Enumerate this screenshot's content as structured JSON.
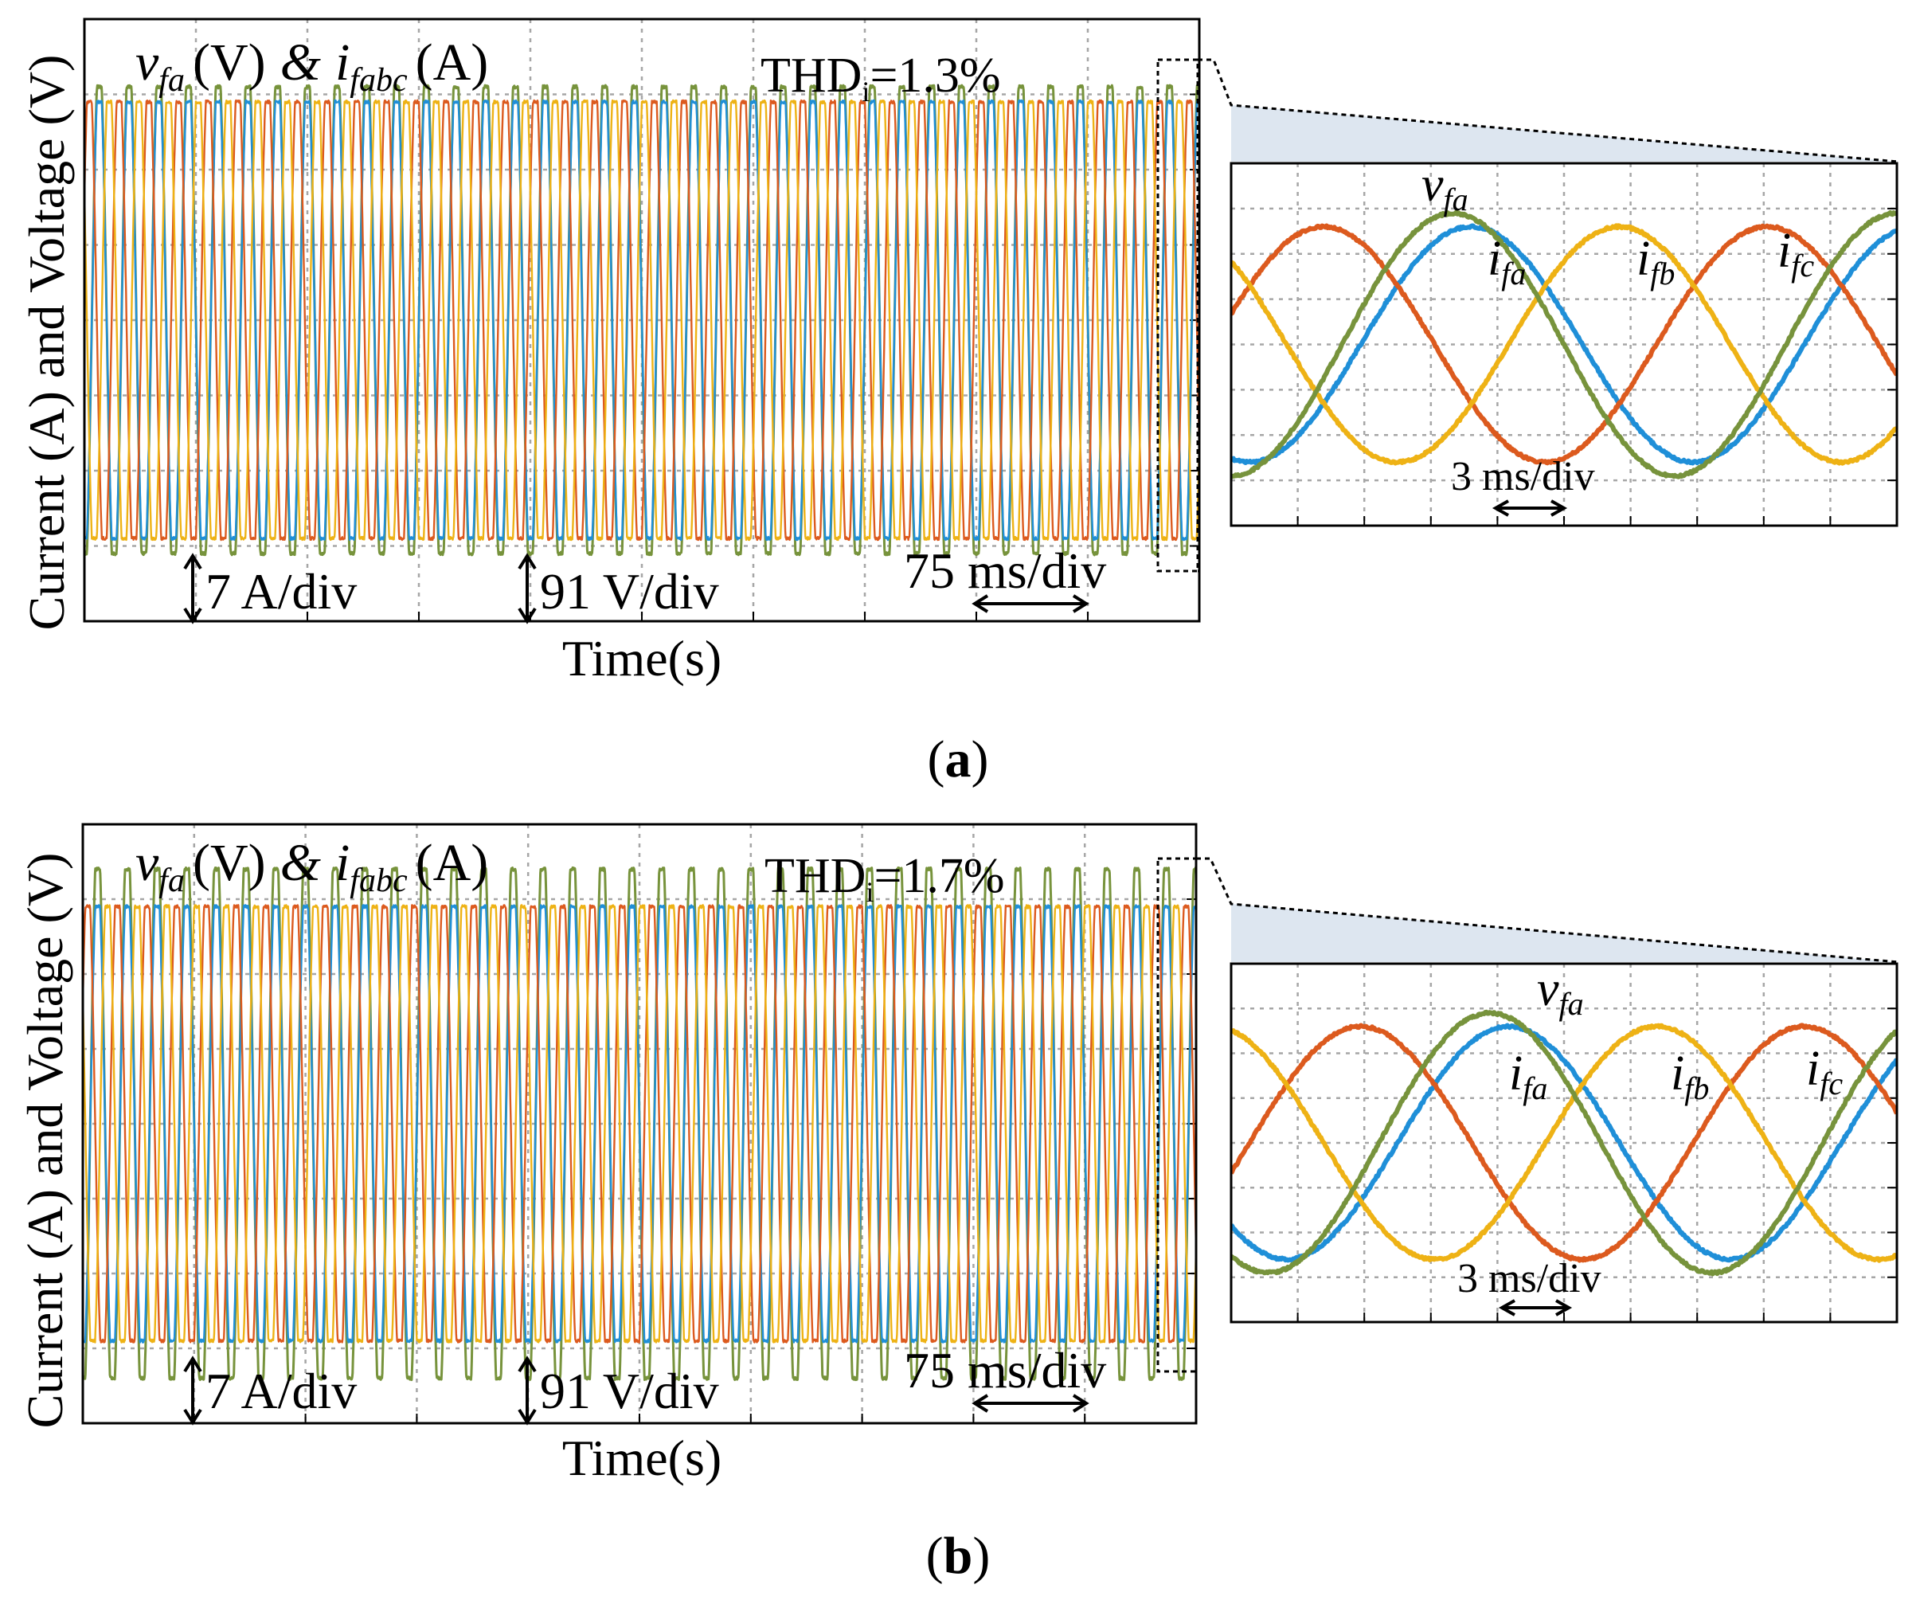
{
  "colors": {
    "v_fa": "#77933c",
    "i_fa": "#1f8fd8",
    "i_fb": "#dc5a1e",
    "i_fc": "#eeb215",
    "grid": "#a6a6a6",
    "zoom_fill": "#dde6f0"
  },
  "figure": {
    "ylabel": "Current (A) and Voltage (V)",
    "xlabel": "Time(s)"
  },
  "chart_data": [
    {
      "type": "line",
      "panel": "a",
      "caption_letter": "a",
      "title_parts": {
        "v": "v",
        "v_sub": "fa",
        "v_unit": "(V)",
        "amp": "&",
        "i": "i",
        "i_sub": "fabc",
        "i_unit": "(A)"
      },
      "thd": {
        "label": "THD",
        "sub": "i",
        "value": "=1.3%"
      },
      "scale_labels": {
        "current": "7 A/div",
        "voltage": "91 V/div",
        "time": "75 ms/div"
      },
      "xlabel": "Time(s)",
      "ylabel": "Current (A) and Voltage (V)",
      "x_divisions": 10,
      "y_divisions": 8,
      "main_window_ms": 750,
      "frequency_hz": 50,
      "amplitude_div": {
        "v_fa": 3.1,
        "i_fa": 2.9,
        "i_fb": 2.9,
        "i_fc": 2.9
      },
      "zoom": {
        "time_label": "3 ms/div",
        "labels": {
          "v": "v",
          "v_sub": "fa",
          "ia": "i",
          "ia_sub": "fa",
          "ib": "i",
          "ib_sub": "fb",
          "ic": "i",
          "ic_sub": "fc"
        },
        "window_ms": 30,
        "x_divisions": 10,
        "y_divisions": 8,
        "series": [
          {
            "name": "i_fa",
            "amplitude_div": 2.6,
            "phase_deg": -105
          },
          {
            "name": "i_fb",
            "amplitude_div": 2.6,
            "phase_deg": 15
          },
          {
            "name": "i_fc",
            "amplitude_div": 2.6,
            "phase_deg": 135
          },
          {
            "name": "v_fa",
            "amplitude_div": 2.9,
            "phase_deg": -90
          }
        ]
      }
    },
    {
      "type": "line",
      "panel": "b",
      "caption_letter": "b",
      "title_parts": {
        "v": "v",
        "v_sub": "fa",
        "v_unit": "(V)",
        "amp": "&",
        "i": "i",
        "i_sub": "fabc",
        "i_unit": "(A)"
      },
      "thd": {
        "label": "THD",
        "sub": "i",
        "value": "=1.7%"
      },
      "scale_labels": {
        "current": "7 A/div",
        "voltage": "91 V/div",
        "time": "75 ms/div"
      },
      "xlabel": "Time(s)",
      "ylabel": "Current (A) and Voltage (V)",
      "x_divisions": 10,
      "y_divisions": 8,
      "main_window_ms": 750,
      "frequency_hz": 50,
      "amplitude_div": {
        "v_fa": 3.4,
        "i_fa": 2.9,
        "i_fb": 2.9,
        "i_fc": 2.9
      },
      "zoom": {
        "time_label": "3 ms/div",
        "labels": {
          "v": "v",
          "v_sub": "fa",
          "ia": "i",
          "ia_sub": "fa",
          "ib": "i",
          "ib_sub": "fb",
          "ic": "i",
          "ic_sub": "fc"
        },
        "window_ms": 30,
        "x_divisions": 10,
        "y_divisions": 8,
        "series": [
          {
            "name": "i_fa",
            "amplitude_div": 2.6,
            "phase_deg": -135
          },
          {
            "name": "i_fb",
            "amplitude_div": 2.6,
            "phase_deg": -15
          },
          {
            "name": "i_fc",
            "amplitude_div": 2.6,
            "phase_deg": 105
          },
          {
            "name": "v_fa",
            "amplitude_div": 2.9,
            "phase_deg": -120
          }
        ]
      }
    }
  ]
}
